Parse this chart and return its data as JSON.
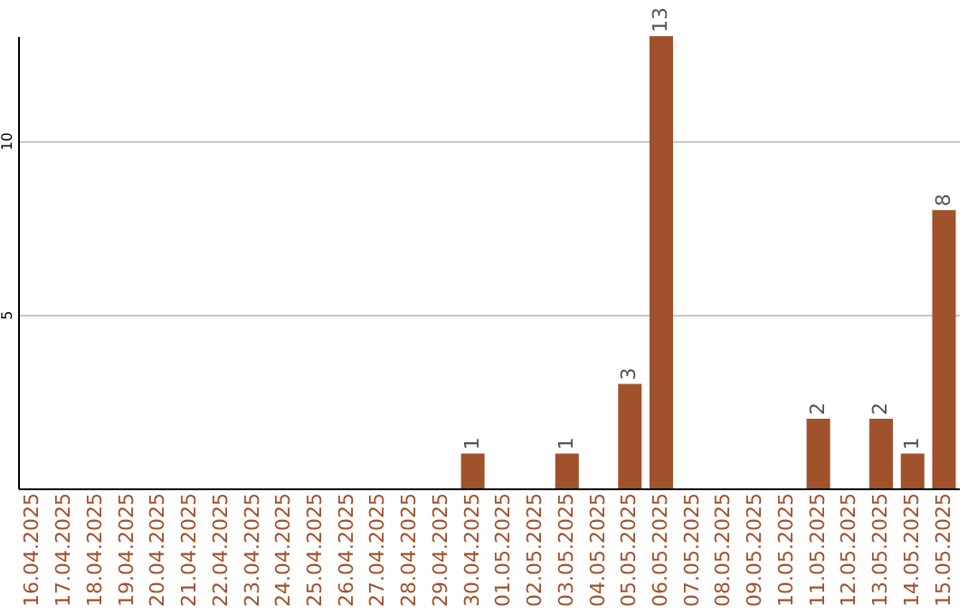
{
  "chart_data": {
    "type": "bar",
    "categories": [
      "16.04.2025",
      "17.04.2025",
      "18.04.2025",
      "19.04.2025",
      "20.04.2025",
      "21.04.2025",
      "22.04.2025",
      "23.04.2025",
      "24.04.2025",
      "25.04.2025",
      "26.04.2025",
      "27.04.2025",
      "28.04.2025",
      "29.04.2025",
      "30.04.2025",
      "01.05.2025",
      "02.05.2025",
      "03.05.2025",
      "04.05.2025",
      "05.05.2025",
      "06.05.2025",
      "07.05.2025",
      "08.05.2025",
      "09.05.2025",
      "10.05.2025",
      "11.05.2025",
      "12.05.2025",
      "13.05.2025",
      "14.05.2025",
      "15.05.2025"
    ],
    "values": [
      0,
      0,
      0,
      0,
      0,
      0,
      0,
      0,
      0,
      0,
      0,
      0,
      0,
      0,
      1,
      0,
      0,
      1,
      0,
      3,
      13,
      0,
      0,
      0,
      0,
      2,
      0,
      2,
      1,
      8
    ],
    "value_labels": [
      null,
      null,
      null,
      null,
      null,
      null,
      null,
      null,
      null,
      null,
      null,
      null,
      null,
      null,
      "1",
      null,
      null,
      "1",
      null,
      "3",
      "13",
      null,
      null,
      null,
      null,
      "2",
      null,
      "2",
      "1",
      "8"
    ],
    "color": "#a0522d",
    "ylim": [
      0,
      13
    ],
    "yticks": [
      5,
      10
    ],
    "grid": "y"
  }
}
